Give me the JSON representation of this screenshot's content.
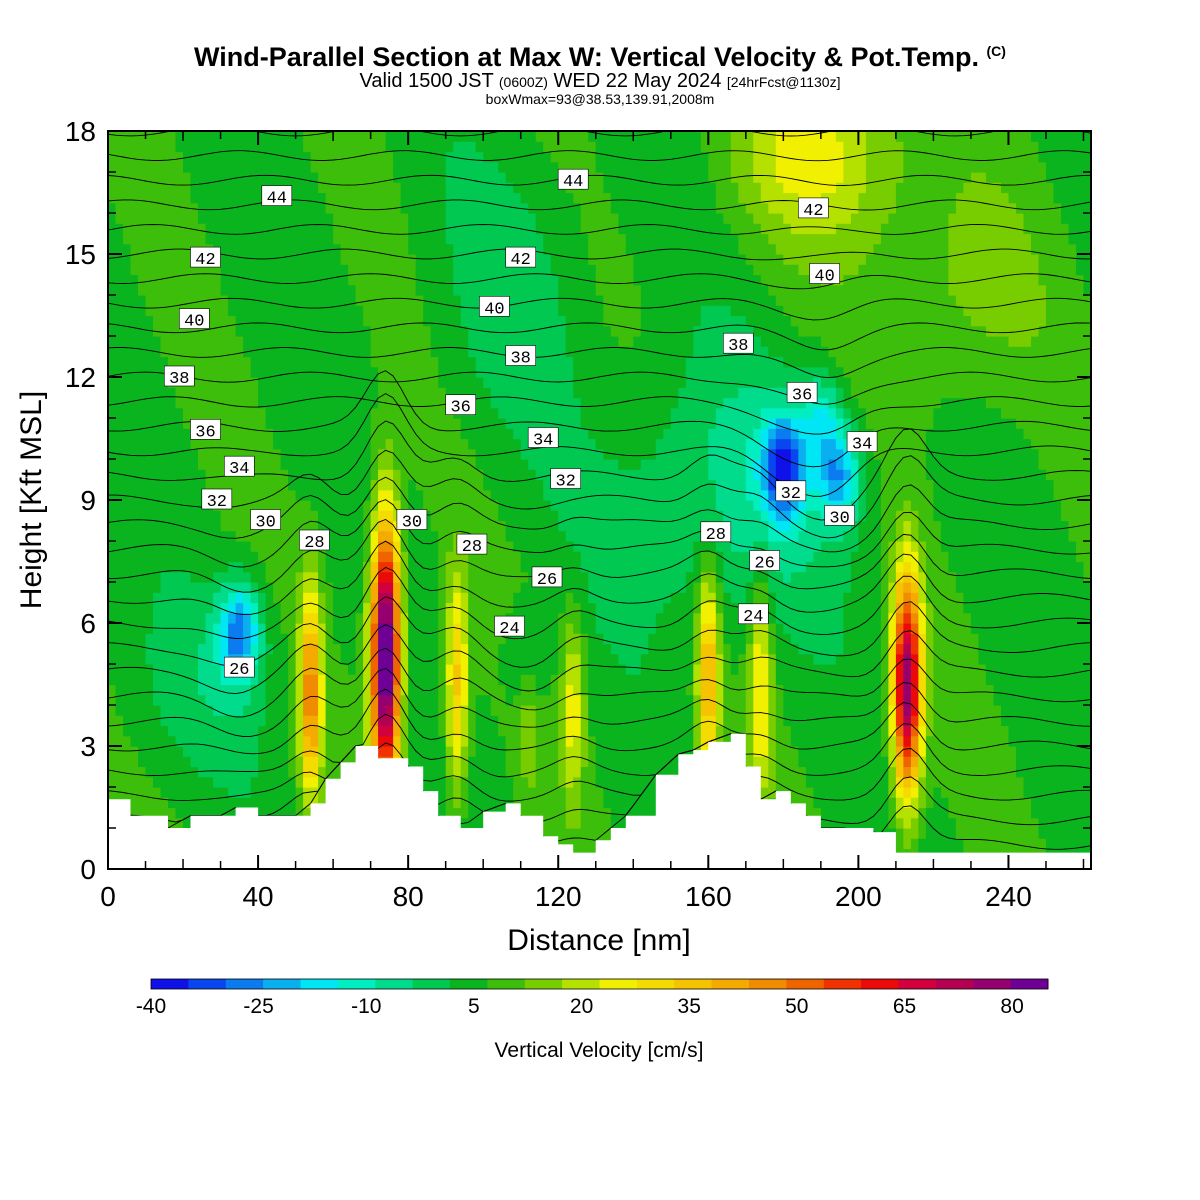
{
  "title": {
    "main": "Wind-Parallel Section at Max W: Vertical Velocity & Pot.Temp.",
    "copyright": "(C)",
    "valid_prefix": "Valid 1500 JST",
    "valid_zulu": "(0600Z)",
    "valid_date": "WED 22 May 2024",
    "forecast": "[24hrFcst@1130z]",
    "box_info": "boxWmax=93@38.53,139.91,2008m"
  },
  "chart_data": {
    "type": "heatmap",
    "xlabel": "Distance [nm]",
    "ylabel": "Height [Kft MSL]",
    "xlim": [
      0,
      262
    ],
    "ylim": [
      0,
      18
    ],
    "x_ticks": [
      "0",
      "40",
      "80",
      "120",
      "160",
      "200",
      "240"
    ],
    "x_tick_values": [
      0,
      40,
      80,
      120,
      160,
      200,
      240
    ],
    "y_ticks": [
      "0",
      "3",
      "6",
      "9",
      "12",
      "15",
      "18"
    ],
    "y_tick_values": [
      0,
      3,
      6,
      9,
      12,
      15,
      18
    ],
    "colorbar": {
      "label": "Vertical Velocity [cm/s]",
      "tick_labels": [
        "-40",
        "-25",
        "-10",
        "5",
        "20",
        "35",
        "50",
        "65",
        "80"
      ],
      "tick_values": [
        -40,
        -25,
        -10,
        5,
        20,
        35,
        50,
        65,
        80
      ],
      "min": -40,
      "max": 85,
      "step": 5,
      "colors": [
        "#1010e8",
        "#0a46f0",
        "#0a7cf0",
        "#0aaff0",
        "#00e6f5",
        "#00eec0",
        "#00dc8c",
        "#00c850",
        "#0ab41e",
        "#3cbe0a",
        "#78cd00",
        "#b4e100",
        "#f0f000",
        "#f5dc00",
        "#f5c300",
        "#f5aa00",
        "#f08c00",
        "#f06400",
        "#f03200",
        "#eb0a0a",
        "#d2003c",
        "#b40050",
        "#96006e",
        "#6e0096"
      ]
    },
    "max_vertical_velocity": {
      "value": 93,
      "unit": "cm/s"
    },
    "updraft_cores": [
      {
        "x": 54,
        "top": 6.8,
        "max": 40
      },
      {
        "x": 74,
        "top": 8.5,
        "max": 85
      },
      {
        "x": 93,
        "top": 7.2,
        "max": 28
      },
      {
        "x": 112,
        "top": 6.0,
        "max": 8
      },
      {
        "x": 124,
        "top": 6.2,
        "max": 18
      },
      {
        "x": 160,
        "top": 7.5,
        "max": 32
      },
      {
        "x": 174,
        "top": 7.2,
        "max": 22
      },
      {
        "x": 213,
        "top": 7.2,
        "max": 70
      }
    ],
    "downdraft_cores": [
      {
        "x": 35,
        "y": 5.8,
        "min": -30
      },
      {
        "x": 180,
        "y": 9.8,
        "min": -35
      },
      {
        "x": 195,
        "y": 9.6,
        "min": -25
      },
      {
        "x": 190,
        "y": 11.0,
        "min": -15
      },
      {
        "x": 112,
        "y": 5.2,
        "min": -10
      }
    ],
    "terrain": {
      "x": [
        0,
        6,
        16,
        22,
        30,
        34,
        40,
        50,
        54,
        58,
        62,
        66,
        72,
        80,
        84,
        88,
        94,
        100,
        106,
        110,
        116,
        120,
        124,
        130,
        134,
        138,
        146,
        152,
        156,
        160,
        166,
        170,
        174,
        178,
        182,
        186,
        190,
        196,
        204,
        210,
        262
      ],
      "y": [
        1.7,
        1.3,
        1.0,
        1.3,
        1.3,
        1.5,
        1.3,
        1.3,
        1.6,
        2.2,
        2.6,
        3.0,
        2.7,
        2.5,
        1.9,
        1.3,
        1.0,
        1.4,
        1.6,
        1.3,
        0.8,
        0.6,
        0.4,
        0.7,
        1.0,
        1.3,
        2.3,
        2.8,
        2.9,
        3.1,
        3.3,
        2.5,
        1.7,
        1.9,
        1.6,
        1.3,
        1.0,
        1.0,
        0.9,
        0.4,
        0.4
      ]
    },
    "potential_temperature": {
      "unit": "K",
      "labels": [
        {
          "text": "44",
          "x": 45,
          "y": 16.4
        },
        {
          "text": "44",
          "x": 124,
          "y": 16.8
        },
        {
          "text": "42",
          "x": 26,
          "y": 14.9
        },
        {
          "text": "42",
          "x": 110,
          "y": 14.9
        },
        {
          "text": "42",
          "x": 188,
          "y": 16.1
        },
        {
          "text": "40",
          "x": 23,
          "y": 13.4
        },
        {
          "text": "40",
          "x": 103,
          "y": 13.7
        },
        {
          "text": "40",
          "x": 191,
          "y": 14.5
        },
        {
          "text": "38",
          "x": 19,
          "y": 12.0
        },
        {
          "text": "38",
          "x": 110,
          "y": 12.5
        },
        {
          "text": "38",
          "x": 168,
          "y": 12.8
        },
        {
          "text": "36",
          "x": 26,
          "y": 10.7
        },
        {
          "text": "36",
          "x": 94,
          "y": 11.3
        },
        {
          "text": "36",
          "x": 185,
          "y": 11.6
        },
        {
          "text": "34",
          "x": 35,
          "y": 9.8
        },
        {
          "text": "34",
          "x": 116,
          "y": 10.5
        },
        {
          "text": "34",
          "x": 201,
          "y": 10.4
        },
        {
          "text": "32",
          "x": 29,
          "y": 9.0
        },
        {
          "text": "32",
          "x": 122,
          "y": 9.5
        },
        {
          "text": "32",
          "x": 182,
          "y": 9.2
        },
        {
          "text": "30",
          "x": 42,
          "y": 8.5
        },
        {
          "text": "30",
          "x": 81,
          "y": 8.5
        },
        {
          "text": "30",
          "x": 195,
          "y": 8.6
        },
        {
          "text": "28",
          "x": 55,
          "y": 8.0
        },
        {
          "text": "28",
          "x": 97,
          "y": 7.9
        },
        {
          "text": "28",
          "x": 162,
          "y": 8.2
        },
        {
          "text": "26",
          "x": 117,
          "y": 7.1
        },
        {
          "text": "26",
          "x": 175,
          "y": 7.5
        },
        {
          "text": "26",
          "x": 35,
          "y": 4.9
        },
        {
          "text": "24",
          "x": 107,
          "y": 5.9
        },
        {
          "text": "24",
          "x": 172,
          "y": 6.2
        }
      ]
    }
  }
}
